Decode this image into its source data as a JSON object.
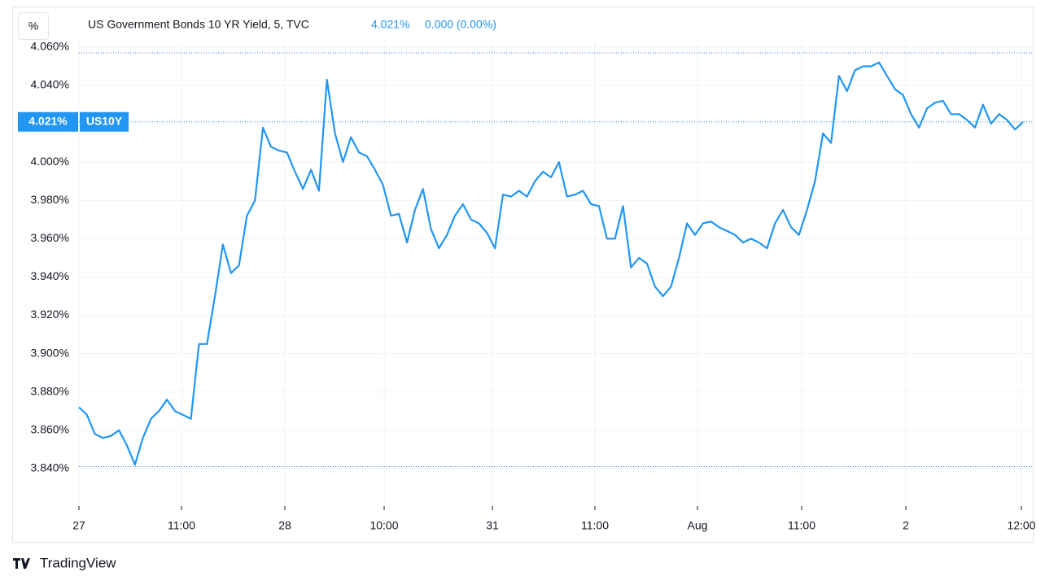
{
  "chart_data": {
    "type": "line",
    "unit_button": "%",
    "title": "US Government Bonds 10 YR Yield, 5, TVC",
    "last_value": "4.021%",
    "change": "0.000 (0.00%)",
    "symbol": "US10Y",
    "brand": "TradingView",
    "x_tick_labels": [
      "27",
      "11:00",
      "28",
      "10:00",
      "31",
      "11:00",
      "Aug",
      "11:00",
      "2",
      "12:00"
    ],
    "ylim": [
      3.8204,
      4.0655
    ],
    "yticks": [
      {
        "value": 3.84,
        "label": "3.840%"
      },
      {
        "value": 3.86,
        "label": "3.860%"
      },
      {
        "value": 3.88,
        "label": "3.880%"
      },
      {
        "value": 3.9,
        "label": "3.900%"
      },
      {
        "value": 3.92,
        "label": "3.920%"
      },
      {
        "value": 3.94,
        "label": "3.940%"
      },
      {
        "value": 3.96,
        "label": "3.960%"
      },
      {
        "value": 3.98,
        "label": "3.980%"
      },
      {
        "value": 4.0,
        "label": "4.000%"
      },
      {
        "value": 4.02,
        "label": "4.020%"
      },
      {
        "value": 4.04,
        "label": "4.040%"
      },
      {
        "value": 4.06,
        "label": "4.060%"
      }
    ],
    "last": {
      "value": 4.021,
      "label": "4.021%"
    },
    "price_lines": [
      4.057,
      3.841
    ],
    "grid": true,
    "series": [
      {
        "name": "US10Y",
        "color": "#2196f3",
        "values": [
          3.872,
          3.868,
          3.858,
          3.856,
          3.857,
          3.86,
          3.852,
          3.842,
          3.856,
          3.866,
          3.87,
          3.876,
          3.87,
          3.868,
          3.866,
          3.905,
          3.905,
          3.93,
          3.957,
          3.942,
          3.946,
          3.972,
          3.98,
          4.018,
          4.008,
          4.006,
          4.005,
          3.995,
          3.986,
          3.996,
          3.985,
          4.043,
          4.015,
          4.0,
          4.013,
          4.005,
          4.003,
          3.996,
          3.988,
          3.972,
          3.973,
          3.958,
          3.975,
          3.986,
          3.965,
          3.955,
          3.962,
          3.972,
          3.978,
          3.97,
          3.968,
          3.963,
          3.955,
          3.983,
          3.982,
          3.985,
          3.982,
          3.99,
          3.995,
          3.992,
          4.0,
          3.982,
          3.983,
          3.985,
          3.978,
          3.977,
          3.96,
          3.96,
          3.977,
          3.945,
          3.95,
          3.947,
          3.935,
          3.93,
          3.935,
          3.95,
          3.968,
          3.962,
          3.968,
          3.969,
          3.966,
          3.964,
          3.962,
          3.958,
          3.96,
          3.958,
          3.955,
          3.968,
          3.975,
          3.966,
          3.962,
          3.975,
          3.99,
          4.015,
          4.01,
          4.045,
          4.037,
          4.048,
          4.05,
          4.05,
          4.052,
          4.045,
          4.038,
          4.035,
          4.025,
          4.018,
          4.028,
          4.031,
          4.032,
          4.025,
          4.025,
          4.022,
          4.018,
          4.03,
          4.02,
          4.025,
          4.022,
          4.017,
          4.021
        ]
      }
    ]
  }
}
